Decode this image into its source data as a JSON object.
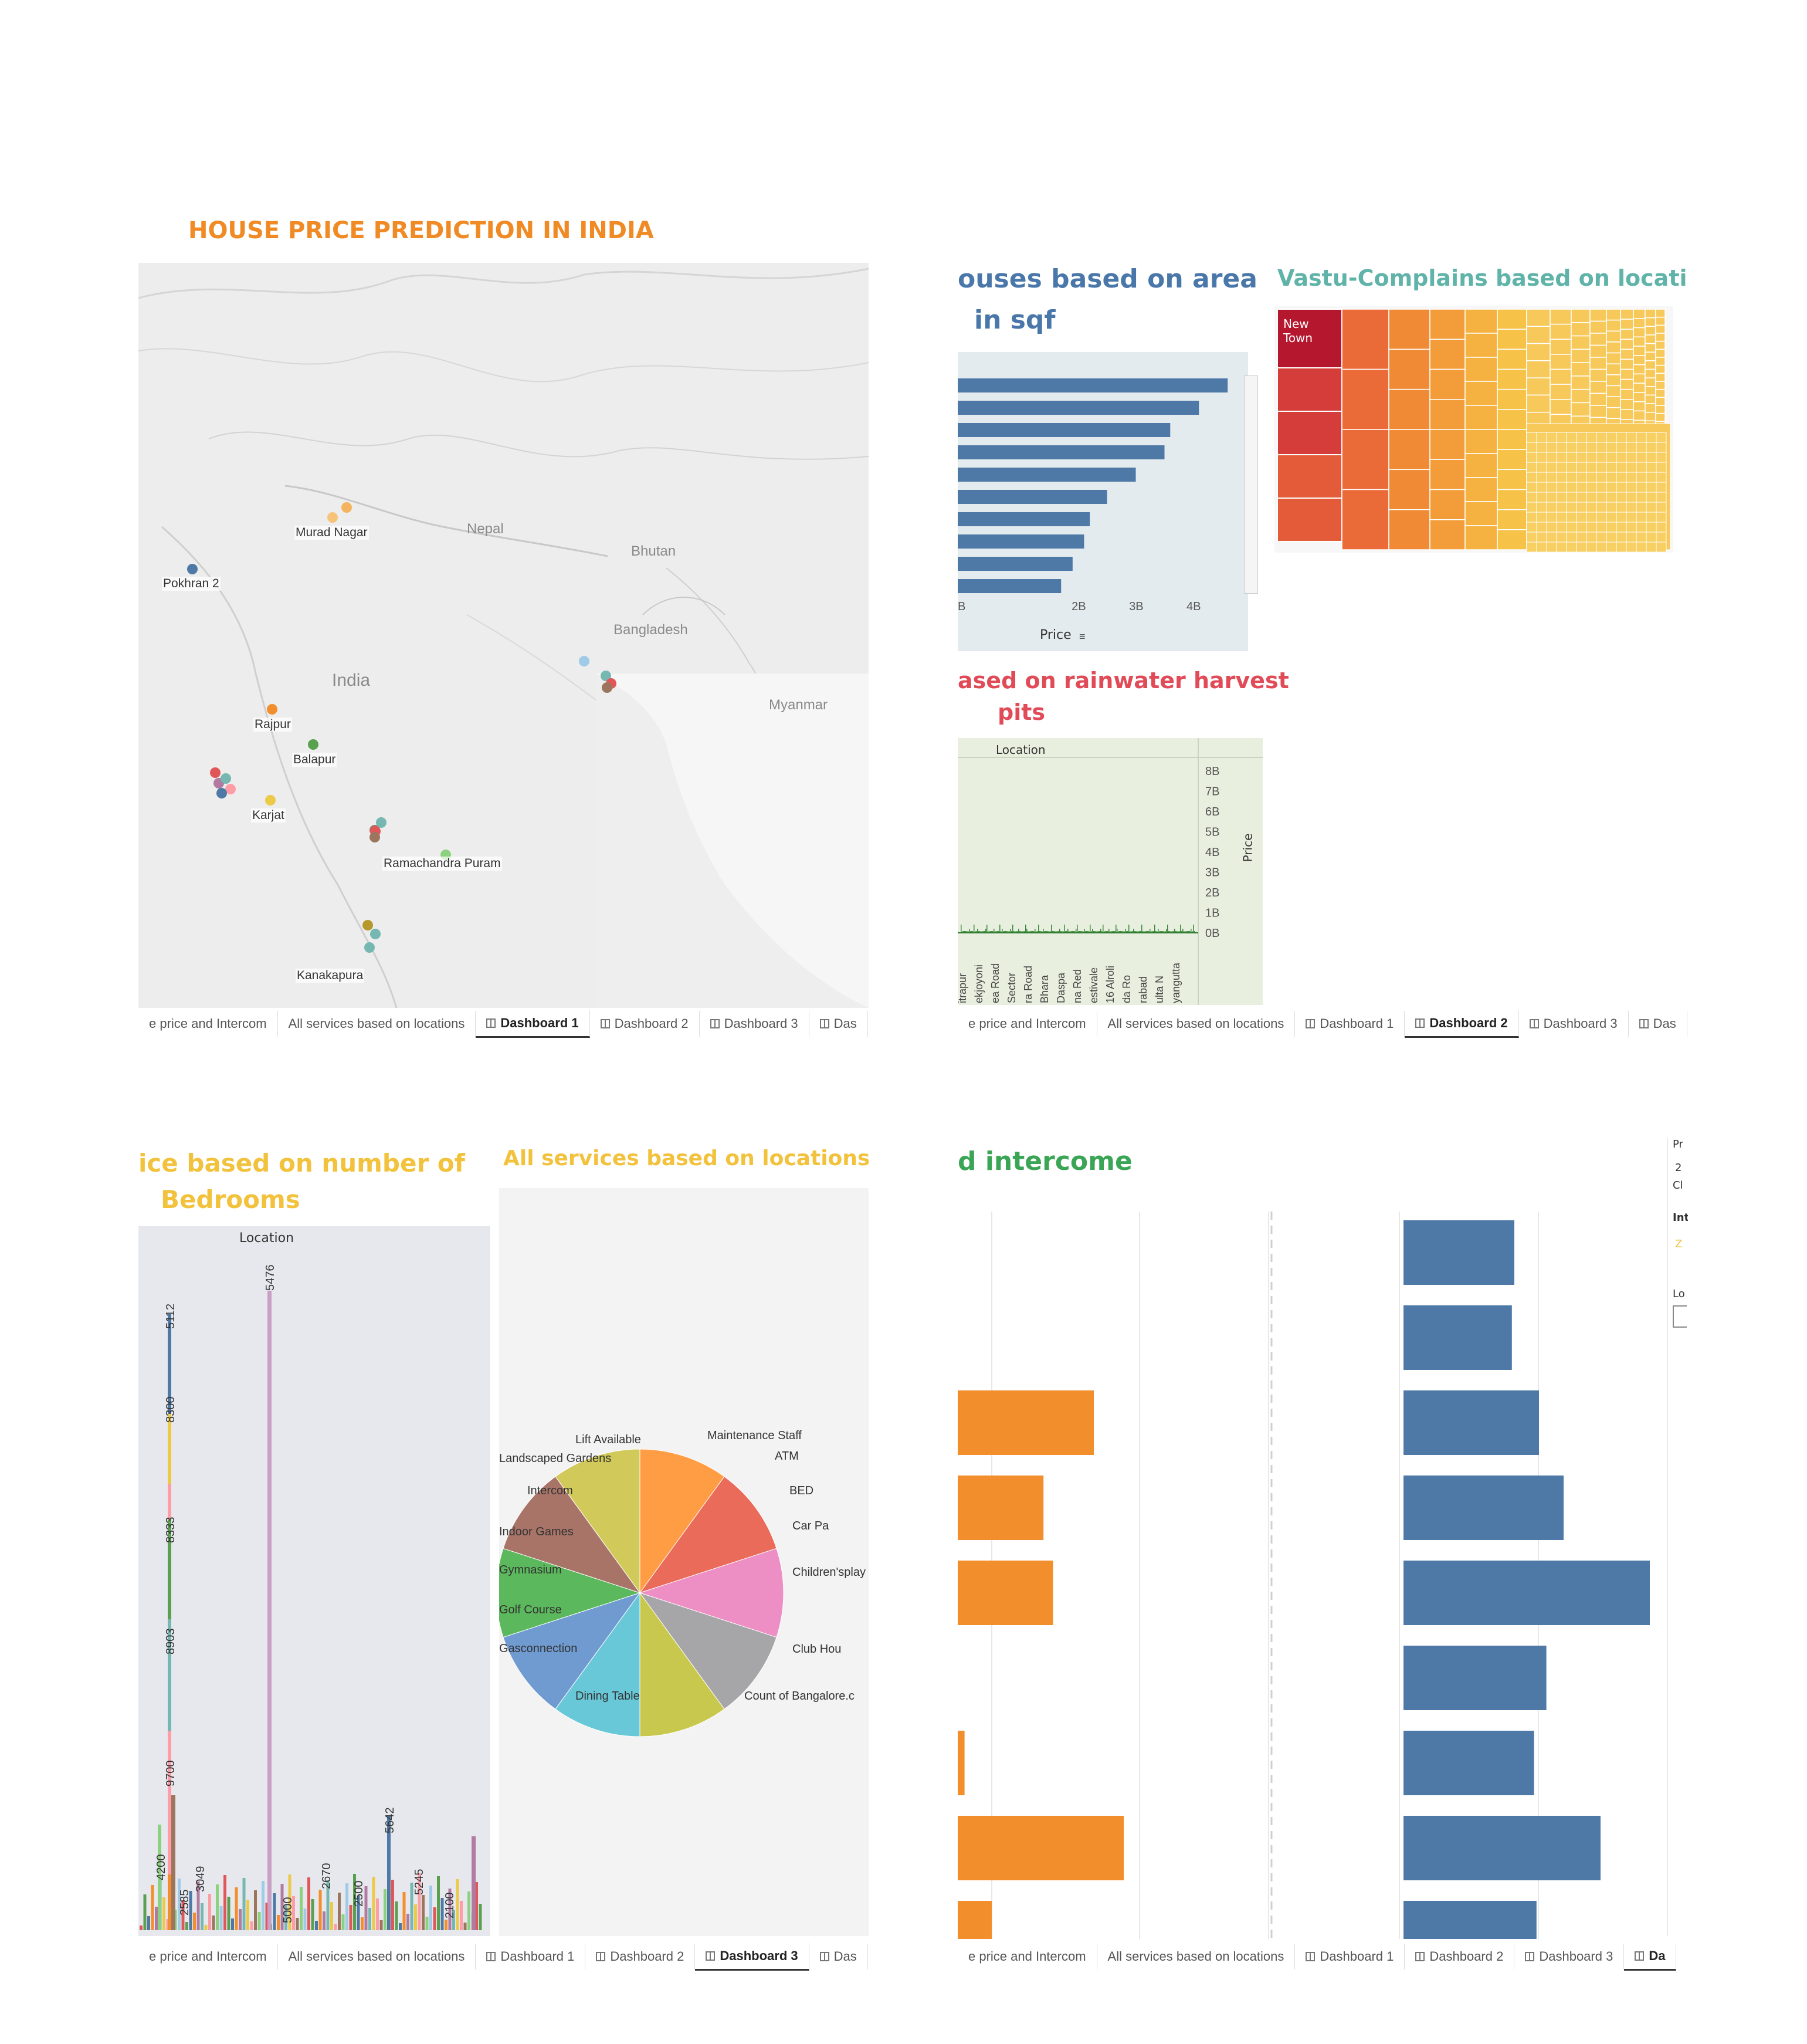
{
  "colors": {
    "orange_title": "#f08a24",
    "blue_title": "#4a77a9",
    "teal_title": "#5fb3a8",
    "red_title": "#e14b57",
    "yellow_title": "#f2c23d",
    "green_title": "#3aa655",
    "bar_blue": "#4e79a7",
    "bar_orange": "#f28e2b"
  },
  "tabs": {
    "tab1": "e price and Intercom",
    "tab2": "All services based on locations",
    "dash1": "Dashboard 1",
    "dash2": "Dashboard 2",
    "dash3": "Dashboard 3",
    "dash_trunc": "Das",
    "dash_trunc2": "Da"
  },
  "dashboard1": {
    "title": "HOUSE PRICE PREDICTION IN INDIA",
    "countries": [
      "Nepal",
      "Bhutan",
      "India",
      "Bangladesh",
      "Myanmar"
    ],
    "locations": [
      "Murad Nagar",
      "Pokhran 2",
      "Rajpur",
      "Balapur",
      "Karjat",
      "Ramachandra Puram",
      "Kanakapura"
    ]
  },
  "dashboard2": {
    "area_title_line1": "ouses based on area",
    "area_title_line2": "in sqf",
    "area_axis_label": "Price",
    "area_ticks": [
      "2B",
      "3B",
      "4B"
    ],
    "vastu_title": "Vastu-Complains based on locations",
    "vastu_top_label": "New Town",
    "rain_title_line1": "ased on rainwater harvest",
    "rain_title_line2": "pits",
    "rain_header": "Location",
    "rain_axis_label": "Price",
    "rain_ticks": [
      "8B",
      "7B",
      "6B",
      "5B",
      "4B",
      "3B",
      "2B",
      "1B",
      "0B"
    ],
    "rain_locations": [
      "itrapur",
      "ekjoyoni",
      "ea Road",
      "Sector",
      "ra Road",
      "Bhara",
      "Daspa",
      "na Red",
      "estivale",
      "16 Alroli",
      "da Ro",
      "rabad",
      "ulta N",
      "yangutta"
    ]
  },
  "dashboard3": {
    "bed_title_line1": "ice based on number of",
    "bed_title_line2": "Bedrooms",
    "bed_header": "Location",
    "bed_labels": [
      "5476",
      "5112",
      "8300",
      "8333",
      "8903",
      "9700",
      "4200",
      "3049",
      "2585",
      "5000",
      "2670",
      "2500",
      "5642",
      "5245",
      "2100"
    ],
    "services_title": "All services based on locations",
    "pie_labels": [
      "Maintenance Staff",
      "ATM",
      "BED",
      "Car Pa",
      "Children'splay",
      "Club Hou",
      "Count of Bangalore.c",
      "Dining Table",
      "Gasconnection",
      "Golf Course",
      "Gymnasium",
      "Indoor Games",
      "Intercom",
      "Landscaped Gardens",
      "Lift Available"
    ]
  },
  "dashboard4": {
    "title": "d intercome",
    "side_labels": [
      "Pr",
      "2",
      "Cl",
      "Int",
      "Z",
      "Lo"
    ]
  },
  "chart_data": [
    {
      "type": "bar",
      "title": "ouses based on area in sqf",
      "xlabel": "Price",
      "orientation": "horizontal",
      "values": [
        47,
        42,
        37,
        36,
        31,
        26,
        23,
        22,
        20,
        18
      ]
    },
    {
      "type": "heatmap",
      "title": "Vastu-Complains based on locations",
      "top_label": "New Town"
    },
    {
      "type": "bar",
      "title": "ased on rainwater harvest pits",
      "ylabel": "Price",
      "ylim": [
        0,
        8
      ]
    },
    {
      "type": "bar",
      "title": "ice based on number of Bedrooms",
      "values": [
        5476,
        5112,
        8300,
        8333,
        8903,
        9700,
        4200,
        3049,
        2585,
        5000,
        2670,
        2500,
        5642,
        5245,
        2100
      ]
    },
    {
      "type": "pie",
      "title": "All services based on locations",
      "categories": [
        "Maintenance Staff",
        "ATM",
        "BED",
        "Car Pa",
        "Children'splay",
        "Club Hou",
        "Count of Bangalore.c",
        "Dining Table",
        "Gasconnection",
        "Golf Course",
        "Gymnasium",
        "Indoor Games",
        "Intercom",
        "Landscaped Gardens",
        "Lift Available"
      ],
      "values": [
        1,
        1,
        1,
        1,
        1,
        1,
        1,
        1,
        1,
        1,
        1,
        1,
        1,
        1,
        1
      ]
    },
    {
      "type": "bar",
      "title": "d intercome",
      "series": [
        {
          "values": [
            null,
            null,
            1.0,
            0.63,
            0.7,
            null,
            0.05,
            1.22,
            0.25
          ]
        },
        {
          "values": [
            0.45,
            0.44,
            0.55,
            0.65,
            1.0,
            0.58,
            0.53,
            0.8,
            0.54
          ]
        }
      ]
    }
  ]
}
